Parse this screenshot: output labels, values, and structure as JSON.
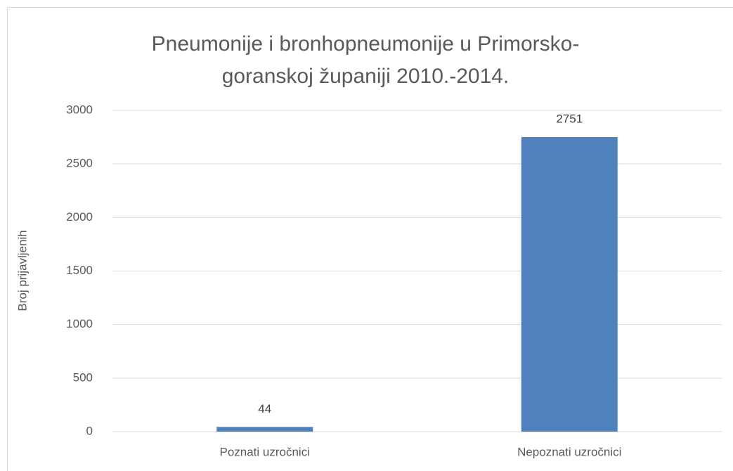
{
  "chart_data": {
    "type": "bar",
    "title": "Pneumonije i bronhopneumonije u Primorsko-goranskoj županiji 2010.-2014.",
    "y_label": "Broj prijavljenih",
    "categories": [
      "Poznati uzročnici",
      "Nepoznati uzročnici"
    ],
    "values": [
      44,
      2751
    ],
    "color": "#4f81bd",
    "ylim": [
      0,
      3000
    ],
    "yticks": [
      0,
      500,
      1000,
      1500,
      2000,
      2500,
      3000
    ],
    "grid": true
  }
}
